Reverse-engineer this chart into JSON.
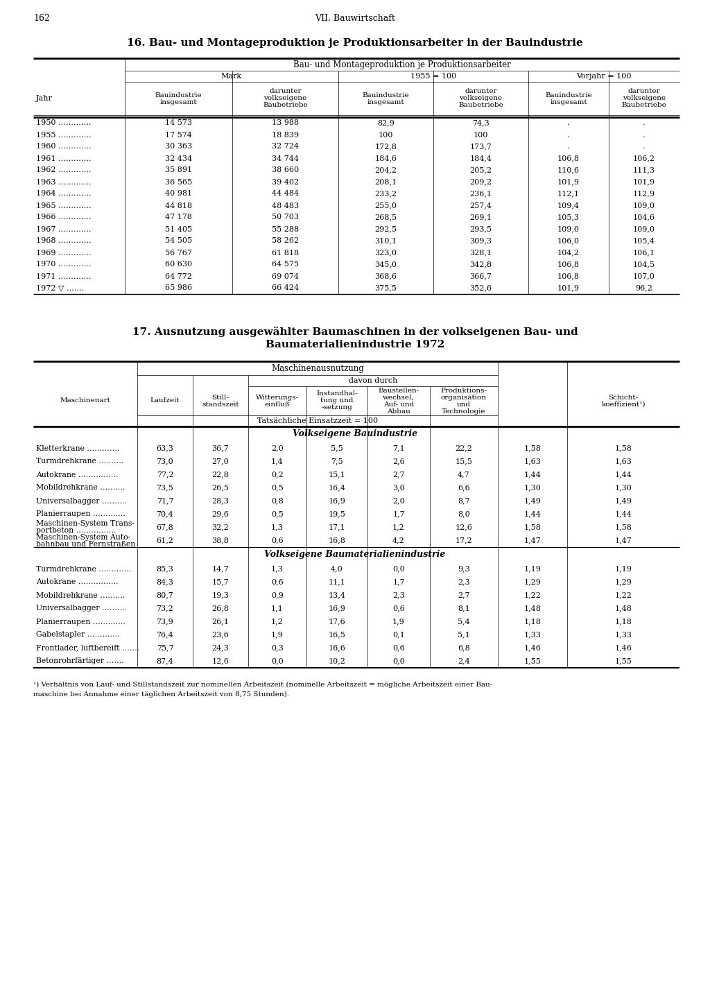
{
  "page_num": "162",
  "page_header": "VII. Bauwirtschaft",
  "table1_title": "16. Bau- und Montageproduktion je Produktionsarbeiter in der Bauindustrie",
  "table1_subtitle": "Bau- und Montageproduktion je Produktionsarbeiter",
  "table1_col_groups": [
    "Mark",
    "1955 = 100",
    "Vorjahr = 100"
  ],
  "table1_data": [
    [
      "1950 ………….",
      "14 573",
      "13 988",
      "82,9",
      "74,3",
      ".",
      "."
    ],
    [
      "1955 ………….",
      "17 574",
      "18 839",
      "100",
      "100",
      ".",
      "."
    ],
    [
      "1960 ………….",
      "30 363",
      "32 724",
      "172,8",
      "173,7",
      ".",
      "."
    ],
    [
      "1961 ………….",
      "32 434",
      "34 744",
      "184,6",
      "184,4",
      "106,8",
      "106,2"
    ],
    [
      "1962 ………….",
      "35 891",
      "38 660",
      "204,2",
      "205,2",
      "110,6",
      "111,3"
    ],
    [
      "1963 ………….",
      "36 565",
      "39 402",
      "208,1",
      "209,2",
      "101,9",
      "101,9"
    ],
    [
      "1964 ………….",
      "40 981",
      "44 484",
      "233,2",
      "236,1",
      "112,1",
      "112,9"
    ],
    [
      "1965 ………….",
      "44 818",
      "48 483",
      "255,0",
      "257,4",
      "109,4",
      "109,0"
    ],
    [
      "1966 ………….",
      "47 178",
      "50 703",
      "268,5",
      "269,1",
      "105,3",
      "104,6"
    ],
    [
      "1967 ………….",
      "51 405",
      "55 288",
      "292,5",
      "293,5",
      "109,0",
      "109,0"
    ],
    [
      "1968 ………….",
      "54 505",
      "58 262",
      "310,1",
      "309,3",
      "106,0",
      "105,4"
    ],
    [
      "1969 ………….",
      "56 767",
      "61 818",
      "323,0",
      "328,1",
      "104,2",
      "106,1"
    ],
    [
      "1970 ………….",
      "60 630",
      "64 575",
      "345,0",
      "342,8",
      "106,8",
      "104,5"
    ],
    [
      "1971 ………….",
      "64 772",
      "69 074",
      "368,6",
      "366,7",
      "106,8",
      "107,0"
    ],
    [
      "1972 ▽ …….",
      "65 986",
      "66 424",
      "375,5",
      "352,6",
      "101,9",
      "96,2"
    ]
  ],
  "table1_sub_headers": [
    "Bauindustrie\ninsgesamt",
    "darunter\nvolkseigene\nBaubetriebe",
    "Bauindustrie\ninsgesamt",
    "darunter\nvolkseigene\nBaubetriebe",
    "Bauindustrie\ninsgesamt",
    "darunter\nvolkseigene\nBaubetriebe"
  ],
  "table2_title1": "17. Ausnutzung ausgewählter Baumaschinen in der volkseigenen Bau- und",
  "table2_title2": "Baumaterialienindustrie 1972",
  "table2_header_main": "Maschinenausnutzung",
  "table2_header_sub": "davon durch",
  "table2_note": "Tatsächliche Einsatzzeit = 100",
  "table2_col_headers": [
    "Maschinenart",
    "Laufzeit",
    "Still-\nstandszeit",
    "Witterungs-\neinfluß",
    "Instandhal-\ntung und\n-setzung",
    "Baustellen-\nwechsel,\nAuf- und\nAbbau",
    "Produktions-\norganisation\nund\nTechnologie",
    "Schicht-\nkoeffizient¹)"
  ],
  "table2_section1": "Volkseigene Bauindustrie",
  "table2_section2": "Volkseigene Baumaterialienindustrie",
  "table2_data_s1": [
    [
      "Kletterkrane ………….",
      "63,3",
      "36,7",
      "2,0",
      "5,5",
      "7,1",
      "22,2",
      "1,58"
    ],
    [
      "Turmdrehkrane ……….",
      "73,0",
      "27,0",
      "1,4",
      "7,5",
      "2,6",
      "15,5",
      "1,63"
    ],
    [
      "Autokrane …………….",
      "77,2",
      "22,8",
      "0,2",
      "15,1",
      "2,7",
      "4,7",
      "1,44"
    ],
    [
      "Mobildrehkrane ……….",
      "73,5",
      "26,5",
      "0,5",
      "16,4",
      "3,0",
      "6,6",
      "1,30"
    ],
    [
      "Universalbagger ……….",
      "71,7",
      "28,3",
      "0,8",
      "16,9",
      "2,0",
      "8,7",
      "1,49"
    ],
    [
      "Planierraupen ………….",
      "70,4",
      "29,6",
      "0,5",
      "19,5",
      "1,7",
      "8,0",
      "1,44"
    ],
    [
      "Maschinen-System Trans-\nportbeton …………….",
      "67,8",
      "32,2",
      "1,3",
      "17,1",
      "1,2",
      "12,6",
      "1,58"
    ],
    [
      "Maschinen-System Auto-\nbahnbau und Fernstraßen",
      "61,2",
      "38,8",
      "0,6",
      "16,8",
      "4,2",
      "17,2",
      "1,47"
    ]
  ],
  "table2_data_s2": [
    [
      "Turmdrehkrane ………….",
      "85,3",
      "14,7",
      "1,3",
      "4,0",
      "0,0",
      "9,3",
      "1,19"
    ],
    [
      "Autokrane …………….",
      "84,3",
      "15,7",
      "0,6",
      "11,1",
      "1,7",
      "2,3",
      "1,29"
    ],
    [
      "Mobildrehkrane ……….",
      "80,7",
      "19,3",
      "0,9",
      "13,4",
      "2,3",
      "2,7",
      "1,22"
    ],
    [
      "Universalbagger ……….",
      "73,2",
      "26,8",
      "1,1",
      "16,9",
      "0,6",
      "8,1",
      "1,48"
    ],
    [
      "Planierraupen ………….",
      "73,9",
      "26,1",
      "1,2",
      "17,6",
      "1,9",
      "5,4",
      "1,18"
    ],
    [
      "Gabelstapler ………….",
      "76,4",
      "23,6",
      "1,9",
      "16,5",
      "0,1",
      "5,1",
      "1,33"
    ],
    [
      "Frontlader, luftbereift …….",
      "75,7",
      "24,3",
      "0,3",
      "16,6",
      "0,6",
      "6,8",
      "1,46"
    ],
    [
      "Betonrohrfärtiger …….",
      "87,4",
      "12,6",
      "0,0",
      "10,2",
      "0,0",
      "2,4",
      "1,55"
    ]
  ],
  "footnote_line1": "¹) Verhältnis von Lauf- und Stillstandszeit zur nominellen Arbeitszeit (nominelle Arbeitszeit = mögliche Arbeitszeit einer Bau-",
  "footnote_line2": "maschine bei Annahme einer täglichen Arbeitszeit von 8,75 Stunden)."
}
